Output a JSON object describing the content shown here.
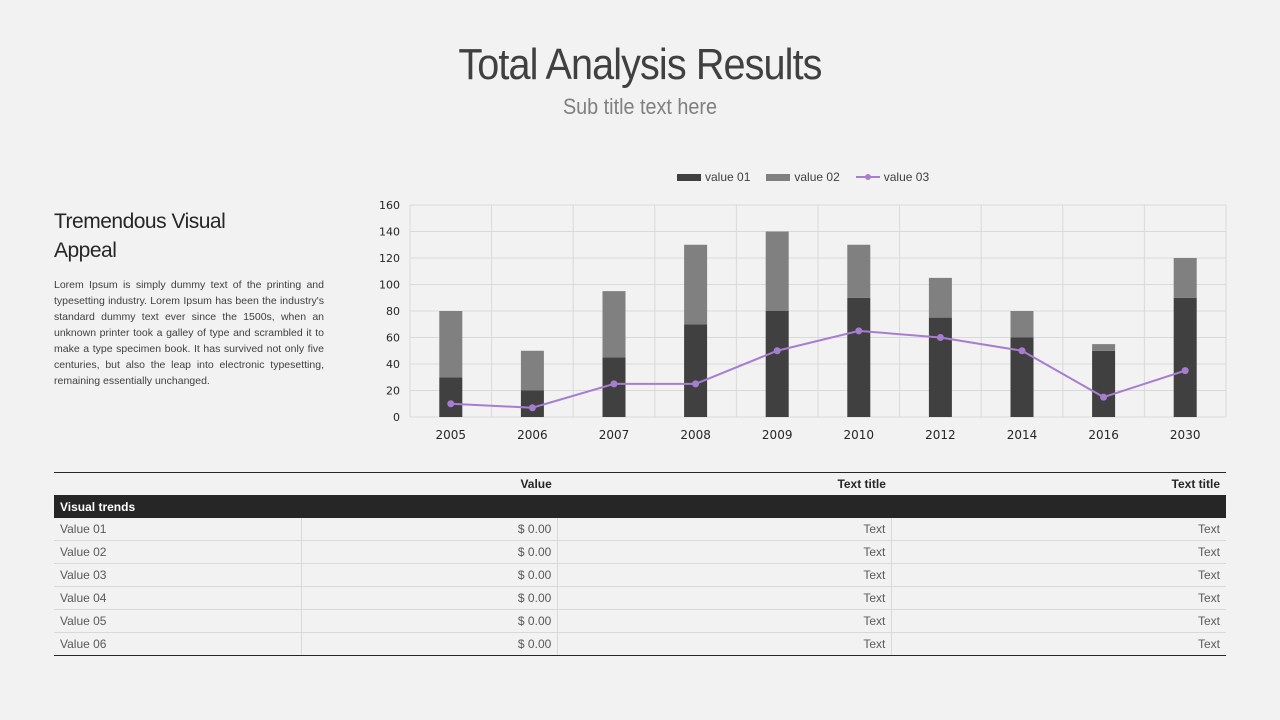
{
  "header": {
    "title": "Total Analysis Results",
    "subtitle": "Sub title text here"
  },
  "side": {
    "heading": "Tremendous Visual Appeal",
    "body": "Lorem Ipsum is simply dummy text of the printing and typesetting industry. Lorem Ipsum has been the industry's standard dummy text ever since the 1500s, when an unknown printer took a galley of type and scrambled it to make a type specimen book. It has survived not only five centuries, but also the leap into electronic typesetting, remaining essentially unchanged."
  },
  "chart_data": {
    "type": "bar",
    "stacked": true,
    "title": "",
    "xlabel": "",
    "ylabel": "",
    "categories": [
      "2005",
      "2006",
      "2007",
      "2008",
      "2009",
      "2010",
      "2012",
      "2014",
      "2016",
      "2030"
    ],
    "series": [
      {
        "name": "value 01",
        "type": "bar",
        "color": "#404040",
        "values": [
          30,
          20,
          45,
          70,
          80,
          90,
          75,
          60,
          50,
          90
        ]
      },
      {
        "name": "value 02",
        "type": "bar",
        "color": "#808080",
        "values": [
          50,
          30,
          50,
          60,
          60,
          40,
          30,
          20,
          5,
          30
        ]
      },
      {
        "name": "value 03",
        "type": "line",
        "color": "#a77dd1",
        "values": [
          10,
          7,
          25,
          25,
          50,
          65,
          60,
          50,
          15,
          35
        ]
      }
    ],
    "ylim": [
      0,
      160
    ],
    "yticks": [
      0,
      20,
      40,
      60,
      80,
      100,
      120,
      140,
      160
    ],
    "grid": true,
    "legend": "top-center"
  },
  "table": {
    "headers": [
      "",
      "Value",
      "Text title",
      "Text title"
    ],
    "group": "Visual trends",
    "rows": [
      [
        "Value 01",
        "$ 0.00",
        "Text",
        "Text"
      ],
      [
        "Value 02",
        "$ 0.00",
        "Text",
        "Text"
      ],
      [
        "Value 03",
        "$ 0.00",
        "Text",
        "Text"
      ],
      [
        "Value 04",
        "$ 0.00",
        "Text",
        "Text"
      ],
      [
        "Value 05",
        "$ 0.00",
        "Text",
        "Text"
      ],
      [
        "Value 06",
        "$ 0.00",
        "Text",
        "Text"
      ]
    ]
  }
}
